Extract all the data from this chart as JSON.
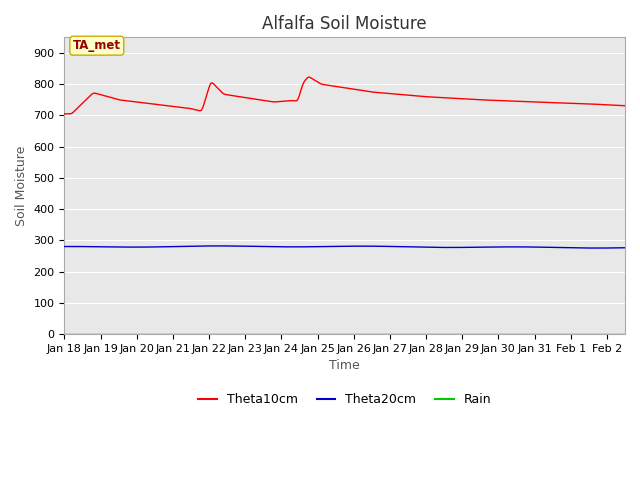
{
  "title": "Alfalfa Soil Moisture",
  "xlabel": "Time",
  "ylabel": "Soil Moisture",
  "ylim": [
    0,
    950
  ],
  "yticks": [
    0,
    100,
    200,
    300,
    400,
    500,
    600,
    700,
    800,
    900
  ],
  "fig_bg_color": "#ffffff",
  "plot_bg_color": "#e8e8e8",
  "annotation_text": "TA_met",
  "annotation_bg": "#ffffcc",
  "annotation_border": "#ccaa00",
  "annotation_text_color": "#990000",
  "legend_entries": [
    "Theta10cm",
    "Theta20cm",
    "Rain"
  ],
  "legend_colors": [
    "#ff0000",
    "#0000cc",
    "#00cc00"
  ],
  "theta10_color": "#ff0000",
  "theta20_color": "#0000cc",
  "rain_color": "#00bb00",
  "title_fontsize": 12,
  "axis_label_fontsize": 9,
  "tick_fontsize": 8
}
